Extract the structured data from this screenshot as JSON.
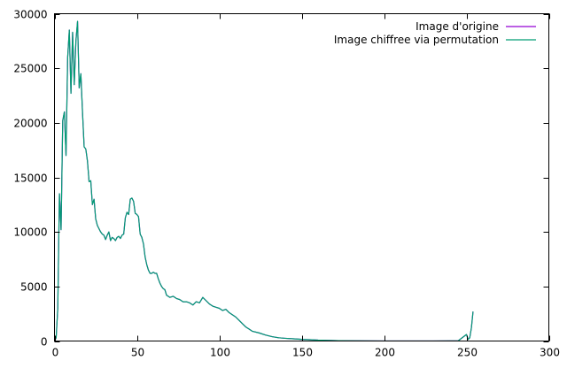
{
  "chart_data": {
    "type": "line",
    "title": "",
    "xlabel": "",
    "ylabel": "",
    "xlim": [
      0,
      300
    ],
    "ylim": [
      0,
      30000
    ],
    "x_ticks": [
      0,
      50,
      100,
      150,
      200,
      250,
      300
    ],
    "y_ticks": [
      0,
      5000,
      10000,
      15000,
      20000,
      25000,
      30000
    ],
    "grid": false,
    "legend_position": "top-right",
    "series": [
      {
        "name": "Image d'origine",
        "color": "#9400d3",
        "x": [
          0,
          1,
          2,
          3,
          4,
          5,
          6,
          7,
          8,
          9,
          10,
          11,
          12,
          13,
          14,
          15,
          16,
          17,
          18,
          19,
          20,
          21,
          22,
          23,
          24,
          25,
          26,
          27,
          28,
          29,
          30,
          31,
          32,
          33,
          34,
          35,
          36,
          37,
          38,
          39,
          40,
          41,
          42,
          43,
          44,
          45,
          46,
          47,
          48,
          49,
          50,
          51,
          52,
          53,
          54,
          55,
          56,
          57,
          58,
          59,
          60,
          61,
          62,
          63,
          64,
          65,
          66,
          67,
          68,
          69,
          70,
          72,
          74,
          76,
          78,
          80,
          82,
          84,
          86,
          88,
          90,
          92,
          94,
          96,
          98,
          100,
          102,
          104,
          106,
          108,
          110,
          112,
          114,
          116,
          118,
          120,
          124,
          128,
          132,
          136,
          140,
          145,
          150,
          155,
          160,
          170,
          180,
          190,
          200,
          210,
          220,
          230,
          240,
          245,
          250,
          251,
          252,
          253,
          254
        ],
        "y": [
          0,
          300,
          3000,
          13500,
          10200,
          20200,
          21000,
          17000,
          26000,
          28500,
          22700,
          28300,
          23500,
          27500,
          29300,
          23200,
          24500,
          21000,
          17800,
          17600,
          16500,
          14600,
          14700,
          12500,
          13000,
          11200,
          10600,
          10300,
          10000,
          9800,
          9700,
          9300,
          9700,
          10000,
          9200,
          9500,
          9400,
          9200,
          9500,
          9600,
          9400,
          9700,
          9800,
          11300,
          11800,
          11600,
          13000,
          13100,
          12800,
          11700,
          11600,
          11400,
          9800,
          9500,
          8900,
          7700,
          7000,
          6500,
          6200,
          6200,
          6300,
          6200,
          6200,
          5700,
          5300,
          5000,
          4800,
          4700,
          4200,
          4100,
          4000,
          4100,
          3900,
          3800,
          3600,
          3600,
          3500,
          3300,
          3600,
          3500,
          4000,
          3700,
          3400,
          3200,
          3100,
          3000,
          2800,
          2900,
          2600,
          2400,
          2200,
          1900,
          1600,
          1300,
          1100,
          900,
          750,
          550,
          400,
          300,
          250,
          200,
          150,
          120,
          80,
          40,
          20,
          10,
          5,
          5,
          5,
          5,
          10,
          20,
          600,
          150,
          300,
          1200,
          2700
        ]
      },
      {
        "name": "Image chiffree via permutation",
        "color": "#009e73",
        "x": [
          0,
          1,
          2,
          3,
          4,
          5,
          6,
          7,
          8,
          9,
          10,
          11,
          12,
          13,
          14,
          15,
          16,
          17,
          18,
          19,
          20,
          21,
          22,
          23,
          24,
          25,
          26,
          27,
          28,
          29,
          30,
          31,
          32,
          33,
          34,
          35,
          36,
          37,
          38,
          39,
          40,
          41,
          42,
          43,
          44,
          45,
          46,
          47,
          48,
          49,
          50,
          51,
          52,
          53,
          54,
          55,
          56,
          57,
          58,
          59,
          60,
          61,
          62,
          63,
          64,
          65,
          66,
          67,
          68,
          69,
          70,
          72,
          74,
          76,
          78,
          80,
          82,
          84,
          86,
          88,
          90,
          92,
          94,
          96,
          98,
          100,
          102,
          104,
          106,
          108,
          110,
          112,
          114,
          116,
          118,
          120,
          124,
          128,
          132,
          136,
          140,
          145,
          150,
          155,
          160,
          170,
          180,
          190,
          200,
          210,
          220,
          230,
          240,
          245,
          250,
          251,
          252,
          253,
          254
        ],
        "y": [
          0,
          300,
          3000,
          13500,
          10200,
          20200,
          21000,
          17000,
          26000,
          28500,
          22700,
          28300,
          23500,
          27500,
          29300,
          23200,
          24500,
          21000,
          17800,
          17600,
          16500,
          14600,
          14700,
          12500,
          13000,
          11200,
          10600,
          10300,
          10000,
          9800,
          9700,
          9300,
          9700,
          10000,
          9200,
          9500,
          9400,
          9200,
          9500,
          9600,
          9400,
          9700,
          9800,
          11300,
          11800,
          11600,
          13000,
          13100,
          12800,
          11700,
          11600,
          11400,
          9800,
          9500,
          8900,
          7700,
          7000,
          6500,
          6200,
          6200,
          6300,
          6200,
          6200,
          5700,
          5300,
          5000,
          4800,
          4700,
          4200,
          4100,
          4000,
          4100,
          3900,
          3800,
          3600,
          3600,
          3500,
          3300,
          3600,
          3500,
          4000,
          3700,
          3400,
          3200,
          3100,
          3000,
          2800,
          2900,
          2600,
          2400,
          2200,
          1900,
          1600,
          1300,
          1100,
          900,
          750,
          550,
          400,
          300,
          250,
          200,
          150,
          120,
          80,
          40,
          20,
          10,
          5,
          5,
          5,
          5,
          10,
          20,
          600,
          150,
          300,
          1200,
          2700
        ]
      }
    ]
  }
}
